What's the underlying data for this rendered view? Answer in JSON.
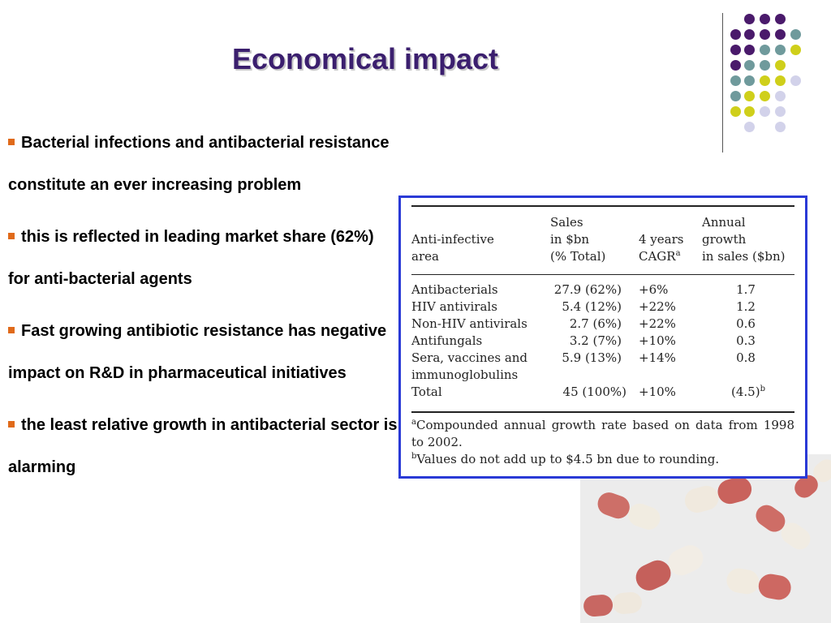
{
  "slide": {
    "title": "Economical impact",
    "bullets": [
      "Bacterial infections and antibacterial resistance constitute an ever increasing problem",
      "this is reflected in  leading market share (62%) for anti-bacterial agents",
      "Fast growing antibiotic resistance has negative impact on R&D in pharmaceutical initiatives",
      "the least relative growth in antibacterial sector is alarming"
    ],
    "accent_colors": {
      "title": "#3b1f6e",
      "bullet": "#e06a1a",
      "table_border": "#2a3ad6",
      "dot_purple": "#4a1a6b",
      "dot_teal": "#6f9a9c",
      "dot_yellow": "#cfcf1a",
      "dot_lavender": "#d2d2ea"
    }
  },
  "table": {
    "headers": {
      "area": [
        "Anti-infective",
        "area"
      ],
      "sales": [
        "Sales",
        "in $bn",
        "(% Total)"
      ],
      "cagr": [
        "4 years",
        "CAGR"
      ],
      "growth": [
        "Annual",
        "growth",
        "in sales ($bn)"
      ]
    },
    "rows": [
      {
        "area": "Antibacterials",
        "sales": "27.9 (62%)",
        "cagr": "+6%",
        "growth": "1.7"
      },
      {
        "area": "HIV antivirals",
        "sales": "5.4 (12%)",
        "cagr": "+22%",
        "growth": "1.2"
      },
      {
        "area": "Non-HIV antivirals",
        "sales": "2.7 (6%)",
        "cagr": "+22%",
        "growth": "0.6"
      },
      {
        "area": "Antifungals",
        "sales": "3.2 (7%)",
        "cagr": "+10%",
        "growth": "0.3"
      },
      {
        "area": "Sera, vaccines and",
        "area2": "immunoglobulins",
        "sales": "5.9 (13%)",
        "cagr": "+14%",
        "growth": "0.8"
      },
      {
        "area": "Total",
        "sales": "45 (100%)",
        "cagr": "+10%",
        "growth": "(4.5)"
      }
    ],
    "sup_a": "a",
    "sup_b": "b",
    "footnote_a": "Compounded annual growth rate based on data from 1998 to 2002.",
    "footnote_b": "Values do not add up to $4.5 bn due to rounding."
  }
}
